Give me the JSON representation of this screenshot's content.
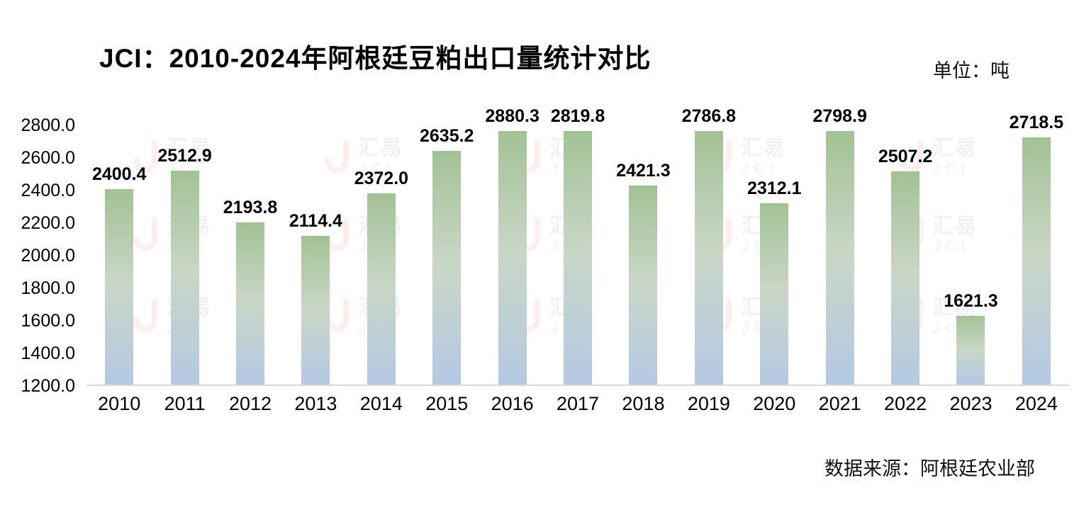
{
  "title": "JCI：2010-2024年阿根廷豆粕出口量统计对比",
  "unit_label": "单位：吨",
  "source_label": "数据来源：阿根廷农业部",
  "watermark": {
    "brand": "汇易",
    "abbr": "JCI"
  },
  "chart_data": {
    "type": "bar",
    "title": "JCI：2010-2024年阿根廷豆粕出口量统计对比",
    "categories": [
      "2010",
      "2011",
      "2012",
      "2013",
      "2014",
      "2015",
      "2016",
      "2017",
      "2018",
      "2019",
      "2020",
      "2021",
      "2022",
      "2023",
      "2024"
    ],
    "values": [
      2400.4,
      2512.9,
      2193.8,
      2114.4,
      2372.0,
      2635.2,
      2880.3,
      2819.8,
      2421.3,
      2786.8,
      2312.1,
      2798.9,
      2507.2,
      1621.3,
      2718.5
    ],
    "xlabel": "",
    "ylabel": "",
    "unit": "吨",
    "source": "数据来源：阿根廷农业部",
    "ylim": [
      1200,
      2920
    ],
    "yticks": [
      1200,
      1400,
      1600,
      1800,
      2000,
      2200,
      2400,
      2600,
      2800
    ],
    "value_label_decimals": 1,
    "grid": false,
    "legend": false,
    "bar_gradient_top": "#a2c294",
    "bar_gradient_bottom": "#b4c9e3",
    "accent_color": "#e05a4e"
  }
}
